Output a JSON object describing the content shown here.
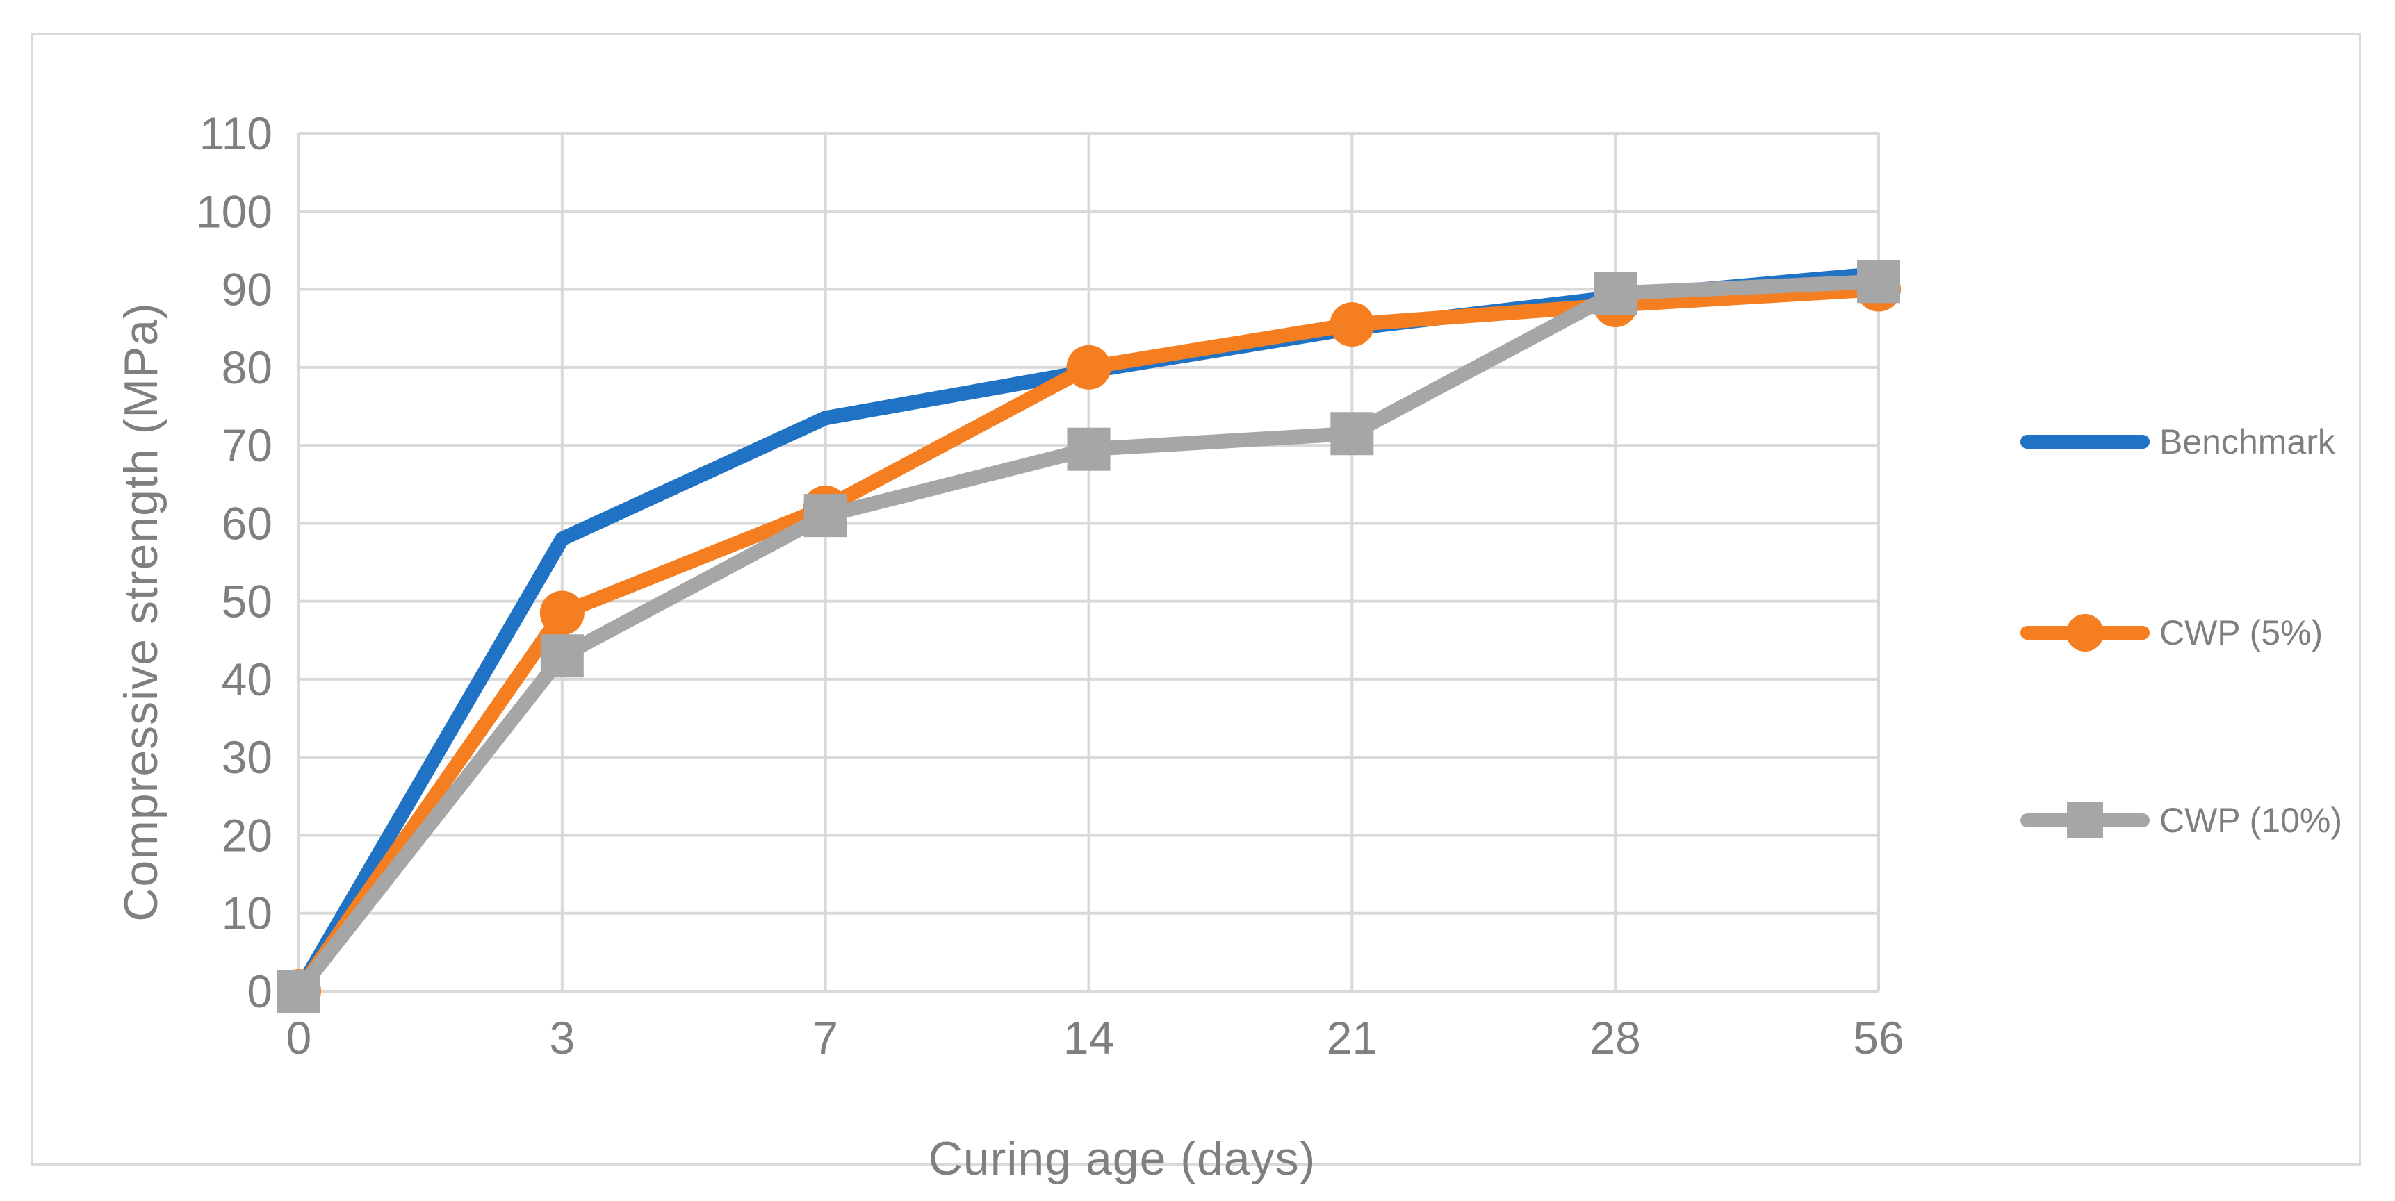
{
  "figure": {
    "background": "#ffffff",
    "card_border_color": "#d9d9d9",
    "gridline_color": "#d9d9d9",
    "text_color": "#7f7f7f"
  },
  "chart_data": {
    "type": "line",
    "title": "",
    "xlabel": "Curing age (days)",
    "ylabel": "Compressive strength (MPa)",
    "categories": [
      "0",
      "3",
      "7",
      "14",
      "21",
      "28",
      "56"
    ],
    "y_tick_labels": [
      "0",
      "10",
      "20",
      "30",
      "40",
      "50",
      "60",
      "70",
      "80",
      "90",
      "100",
      "110"
    ],
    "ylim": [
      0,
      110
    ],
    "grid": true,
    "legend_position": "right",
    "series": [
      {
        "name": "Benchmark",
        "color": "#1f72c4",
        "marker": "none",
        "values": [
          0,
          58,
          73.5,
          79.5,
          85,
          89,
          92
        ]
      },
      {
        "name": "CWP (5%)",
        "color": "#f57e20",
        "marker": "circle",
        "values": [
          0,
          48.5,
          62,
          80,
          85.5,
          88,
          90
        ]
      },
      {
        "name": "CWP (10%)",
        "color": "#a6a6a6",
        "marker": "square",
        "values": [
          0,
          43,
          61,
          69.5,
          71.5,
          89.5,
          91
        ]
      }
    ]
  }
}
